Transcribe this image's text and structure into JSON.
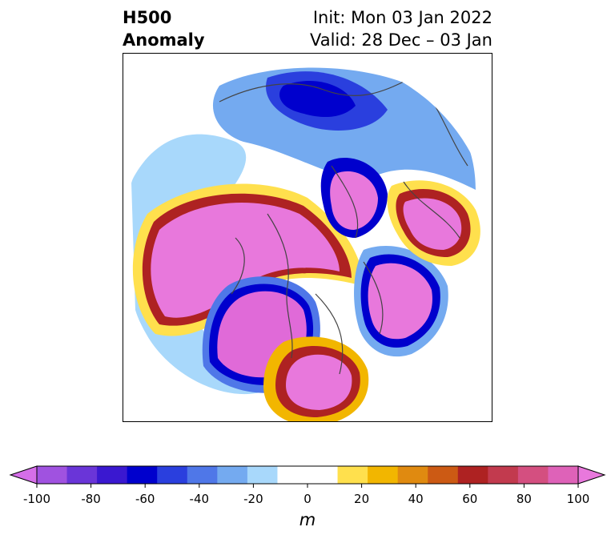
{
  "title": {
    "line1_left": "H500",
    "line2_left": "Anomaly",
    "line1_right": "Init: Mon 03 Jan 2022",
    "line2_right": "Valid: 28 Dec – 03 Jan"
  },
  "colorbar": {
    "ticks": [
      "-100",
      "-80",
      "-60",
      "-40",
      "-20",
      "0",
      "20",
      "40",
      "60",
      "80",
      "100"
    ],
    "unit": "m",
    "colors": [
      "#d56ee8",
      "#a052e0",
      "#6a35d8",
      "#3a18d0",
      "#0000cd",
      "#2a3fde",
      "#4f77e8",
      "#74aaf0",
      "#a8d8fb",
      "#ffffff",
      "#ffffff",
      "#ffe04d",
      "#f2b600",
      "#e08a10",
      "#cc5a14",
      "#ae2222",
      "#c23a4e",
      "#d44f80",
      "#de62b8",
      "#e878dc"
    ],
    "extend": "both"
  },
  "map": {
    "projection": "north polar stereographic",
    "field": "500 hPa height anomaly"
  }
}
